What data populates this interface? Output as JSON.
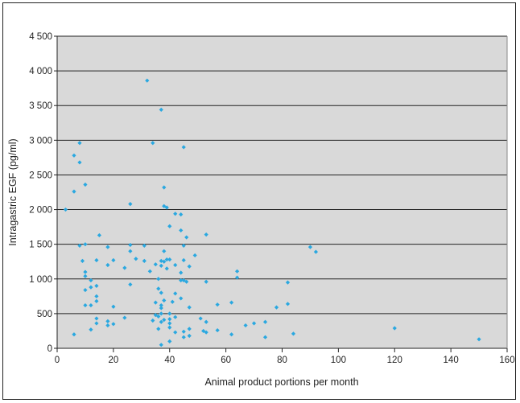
{
  "chart_data": {
    "type": "scatter",
    "title": "",
    "xlabel": "Animal product portions per month",
    "ylabel": "Intragastric EGF (pg/ml)",
    "xlim": [
      0,
      160
    ],
    "ylim": [
      0,
      4500
    ],
    "x_ticks": [
      0,
      20,
      40,
      60,
      80,
      100,
      120,
      140,
      160
    ],
    "y_ticks": [
      0,
      500,
      1000,
      1500,
      2000,
      2500,
      3000,
      3500,
      4000,
      4500
    ],
    "x_tick_labels": [
      "0",
      "20",
      "40",
      "60",
      "80",
      "100",
      "120",
      "140",
      "160"
    ],
    "y_tick_labels": [
      "0",
      "500",
      "1 000",
      "1 500",
      "2 000",
      "2 500",
      "3 000",
      "3 500",
      "4 000",
      "4 500"
    ],
    "grid": "horizontal",
    "background": "#d9d9d9",
    "marker_color": "#2aa8e0",
    "gridline_color": "#222222",
    "legend": "none",
    "series": [
      {
        "points": [
          [
            3,
            2000
          ],
          [
            6,
            2260
          ],
          [
            6,
            2780
          ],
          [
            6,
            200
          ],
          [
            8,
            2960
          ],
          [
            8,
            2680
          ],
          [
            8,
            1480
          ],
          [
            9,
            1260
          ],
          [
            10,
            2360
          ],
          [
            10,
            1500
          ],
          [
            10,
            1100
          ],
          [
            10,
            1040
          ],
          [
            10,
            840
          ],
          [
            10,
            620
          ],
          [
            12,
            980
          ],
          [
            12,
            880
          ],
          [
            12,
            620
          ],
          [
            12,
            270
          ],
          [
            14,
            1270
          ],
          [
            14,
            900
          ],
          [
            14,
            750
          ],
          [
            14,
            680
          ],
          [
            14,
            430
          ],
          [
            14,
            360
          ],
          [
            15,
            1630
          ],
          [
            18,
            1460
          ],
          [
            18,
            1200
          ],
          [
            18,
            390
          ],
          [
            18,
            330
          ],
          [
            20,
            1270
          ],
          [
            20,
            600
          ],
          [
            20,
            350
          ],
          [
            24,
            1160
          ],
          [
            24,
            440
          ],
          [
            26,
            2080
          ],
          [
            26,
            1490
          ],
          [
            26,
            1400
          ],
          [
            26,
            920
          ],
          [
            28,
            1290
          ],
          [
            31,
            1480
          ],
          [
            31,
            1260
          ],
          [
            32,
            3860
          ],
          [
            33,
            1110
          ],
          [
            34,
            2960
          ],
          [
            34,
            400
          ],
          [
            35,
            1210
          ],
          [
            35,
            660
          ],
          [
            35,
            480
          ],
          [
            36,
            1000
          ],
          [
            36,
            280
          ],
          [
            36,
            460
          ],
          [
            36,
            860
          ],
          [
            37,
            3440
          ],
          [
            37,
            1260
          ],
          [
            37,
            1190
          ],
          [
            37,
            800
          ],
          [
            37,
            620
          ],
          [
            37,
            580
          ],
          [
            37,
            500
          ],
          [
            37,
            380
          ],
          [
            37,
            50
          ],
          [
            38,
            2320
          ],
          [
            38,
            2050
          ],
          [
            38,
            1400
          ],
          [
            38,
            1250
          ],
          [
            38,
            690
          ],
          [
            38,
            410
          ],
          [
            39,
            2030
          ],
          [
            39,
            1280
          ],
          [
            39,
            1150
          ],
          [
            40,
            1760
          ],
          [
            40,
            1280
          ],
          [
            40,
            500
          ],
          [
            40,
            420
          ],
          [
            40,
            360
          ],
          [
            40,
            300
          ],
          [
            40,
            100
          ],
          [
            41,
            670
          ],
          [
            42,
            1940
          ],
          [
            42,
            1200
          ],
          [
            42,
            790
          ],
          [
            42,
            450
          ],
          [
            42,
            230
          ],
          [
            44,
            1930
          ],
          [
            44,
            1700
          ],
          [
            44,
            1090
          ],
          [
            44,
            980
          ],
          [
            44,
            720
          ],
          [
            45,
            2900
          ],
          [
            45,
            1480
          ],
          [
            45,
            1270
          ],
          [
            45,
            980
          ],
          [
            45,
            160
          ],
          [
            45,
            240
          ],
          [
            46,
            1600
          ],
          [
            46,
            960
          ],
          [
            47,
            1180
          ],
          [
            47,
            590
          ],
          [
            47,
            280
          ],
          [
            47,
            180
          ],
          [
            49,
            1340
          ],
          [
            51,
            430
          ],
          [
            52,
            250
          ],
          [
            53,
            1640
          ],
          [
            53,
            960
          ],
          [
            53,
            380
          ],
          [
            53,
            230
          ],
          [
            57,
            630
          ],
          [
            57,
            260
          ],
          [
            62,
            660
          ],
          [
            62,
            200
          ],
          [
            64,
            1110
          ],
          [
            64,
            1020
          ],
          [
            67,
            330
          ],
          [
            70,
            360
          ],
          [
            74,
            380
          ],
          [
            74,
            160
          ],
          [
            78,
            590
          ],
          [
            82,
            950
          ],
          [
            82,
            640
          ],
          [
            84,
            210
          ],
          [
            90,
            1460
          ],
          [
            92,
            1390
          ],
          [
            120,
            290
          ],
          [
            150,
            130
          ]
        ]
      }
    ]
  }
}
